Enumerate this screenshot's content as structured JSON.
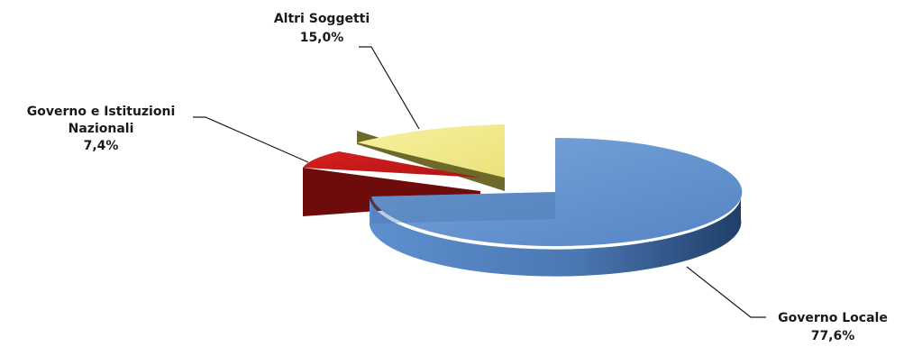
{
  "chart_data": {
    "type": "pie",
    "title": "",
    "three_d": true,
    "exploded": true,
    "legend": "none",
    "slices": [
      {
        "name": "Governo Locale",
        "label_lines": [
          "Governo Locale"
        ],
        "value": 77.6,
        "value_label": "77,6%",
        "color": "#5b8fd0"
      },
      {
        "name": "Governo e Istituzioni Nazionali",
        "label_lines": [
          "Governo e Istituzioni",
          "Nazionali"
        ],
        "value": 7.4,
        "value_label": "7,4%",
        "color": "#c01818"
      },
      {
        "name": "Altri Soggetti",
        "label_lines": [
          "Altri Soggetti"
        ],
        "value": 15.0,
        "value_label": "15,0%",
        "color": "#f2eb88"
      }
    ]
  }
}
